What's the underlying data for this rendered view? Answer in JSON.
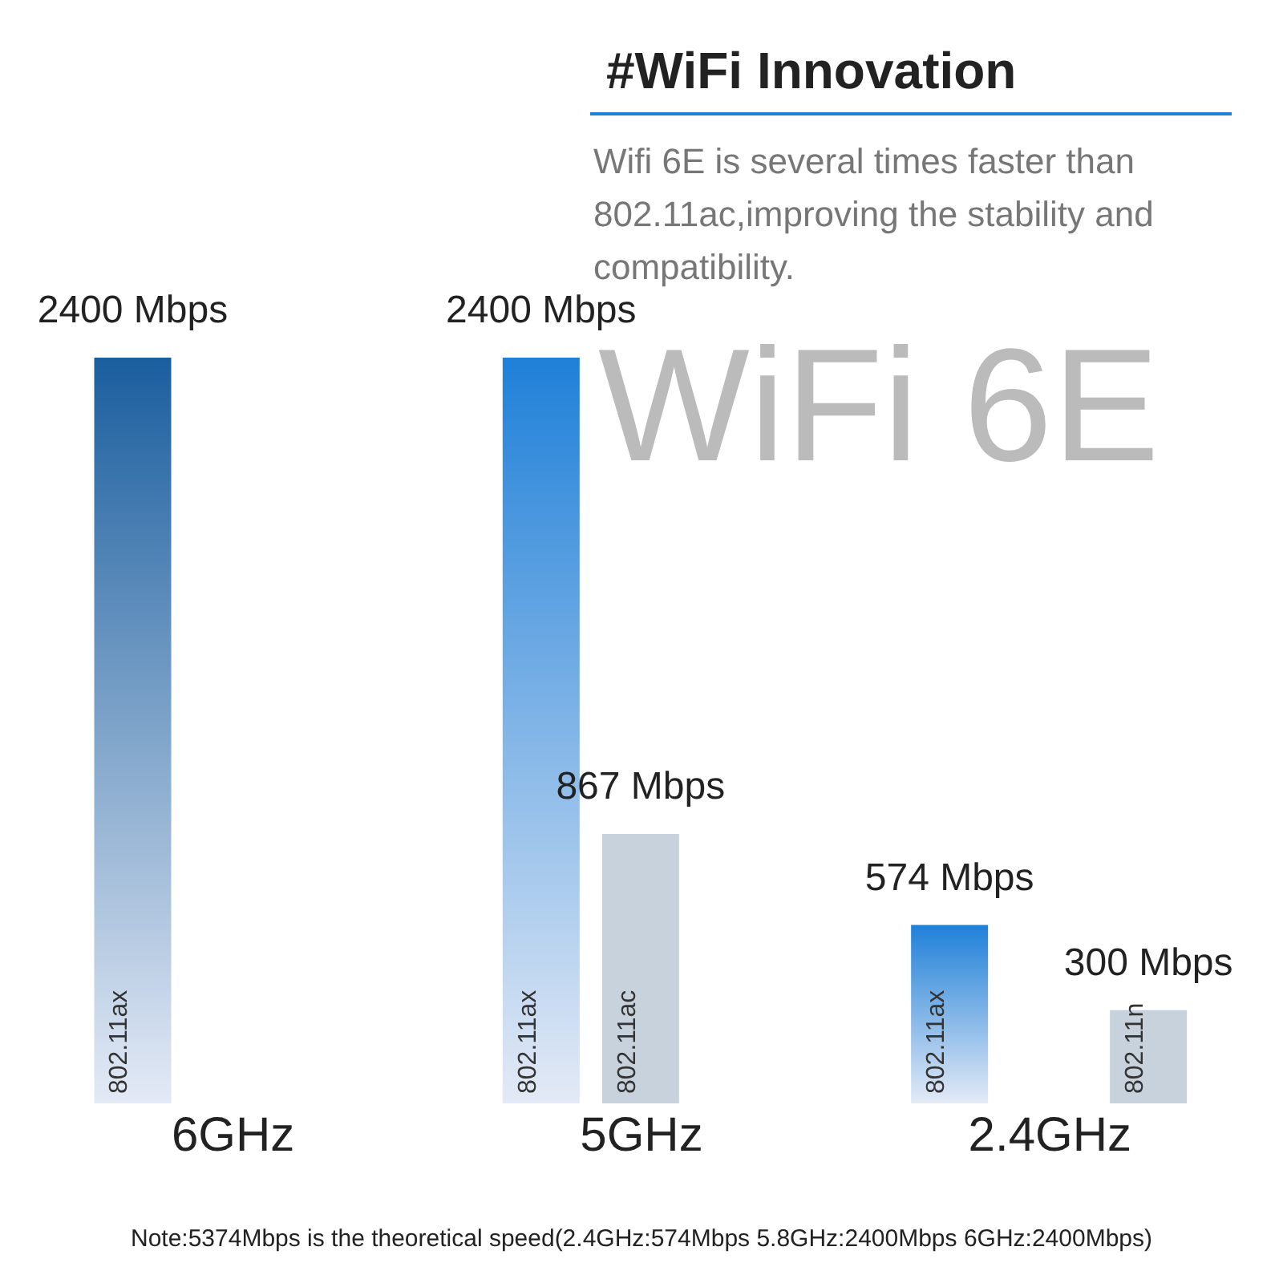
{
  "chart_data": {
    "type": "bar",
    "title": "#WiFi Innovation",
    "subtitle": "Wifi 6E is several times faster than 802.11ac,improving the stability and compatibility.",
    "categories": [
      "6GHz",
      "5GHz",
      "2.4GHz"
    ],
    "series": [
      {
        "name": "802.11ax",
        "colors": [
          "#1a5e9e",
          "#1f80d8",
          "#1f80d8"
        ],
        "values": [
          2400,
          2400,
          574
        ],
        "value_labels": [
          "2400 Mbps",
          "2400 Mbps",
          "574 Mbps"
        ]
      },
      {
        "name": "802.11ac",
        "color": "#c8d2dc",
        "values": [
          null,
          867,
          null
        ],
        "value_labels": [
          null,
          "867 Mbps",
          null
        ]
      },
      {
        "name": "802.11n",
        "color": "#c8d2dc",
        "values": [
          null,
          null,
          300
        ],
        "value_labels": [
          null,
          null,
          "300 Mbps"
        ]
      }
    ],
    "annotations": [
      "WiFi 6E",
      "Note:5374Mbps is the theoretical speed(2.4GHz:574Mbps  5.8GHz:2400Mbps  6GHz:2400Mbps)"
    ],
    "relative": false
  }
}
